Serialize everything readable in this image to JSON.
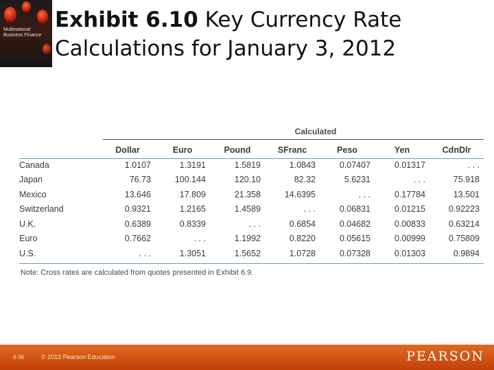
{
  "cover": {
    "title": "Multinational Business Finance"
  },
  "title": {
    "bold": "Exhibit 6.10",
    "rest": " Key Currency Rate Calculations for January 3, 2012"
  },
  "table": {
    "group_header": "Calculated",
    "columns": [
      "Dollar",
      "Euro",
      "Pound",
      "SFranc",
      "Peso",
      "Yen",
      "CdnDlr"
    ],
    "rows": [
      {
        "label": "Canada",
        "values": [
          "1.0107",
          "1.3191",
          "1.5819",
          "1.0843",
          "0.07407",
          "0.01317",
          ". . ."
        ]
      },
      {
        "label": "Japan",
        "values": [
          "76.73",
          "100.144",
          "120.10",
          "82.32",
          "5.6231",
          ". . .",
          "75.918"
        ]
      },
      {
        "label": "Mexico",
        "values": [
          "13.646",
          "17.809",
          "21.358",
          "14.6395",
          ". . .",
          "0.17784",
          "13.501"
        ]
      },
      {
        "label": "Switzerland",
        "values": [
          "0.9321",
          "1.2165",
          "1.4589",
          ". . .",
          "0.06831",
          "0.01215",
          "0.92223"
        ]
      },
      {
        "label": "U.K.",
        "values": [
          "0.6389",
          "0.8339",
          ". . .",
          "0.6854",
          "0.04682",
          "0.00833",
          "0.63214"
        ]
      },
      {
        "label": "Euro",
        "values": [
          "0.7662",
          ". . .",
          "1.1992",
          "0.8220",
          "0.05615",
          "0.00999",
          "0.75809"
        ]
      },
      {
        "label": "U.S.",
        "values": [
          ". . .",
          "1.3051",
          "1.5652",
          "1.0728",
          "0.07328",
          "0.01303",
          "0.9894"
        ]
      }
    ],
    "note": "Note: Cross rates are calculated from quotes presented in Exhibit 6.9."
  },
  "footer": {
    "slide_number": "6-36",
    "copyright": "© 2013 Pearson Education",
    "brand": "PEARSON",
    "brand_color": "#d4561a"
  }
}
